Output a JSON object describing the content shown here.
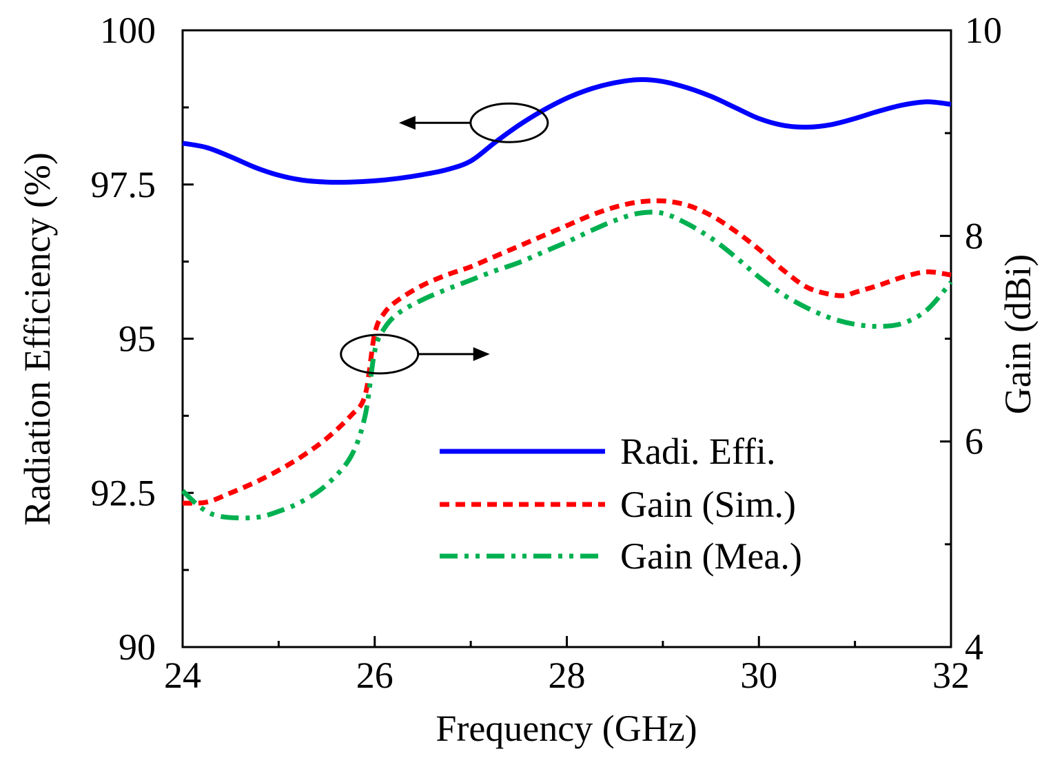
{
  "chart_data": {
    "type": "line",
    "xlabel": "Frequency (GHz)",
    "ylabel_left": "Radiation Efficiency (%)",
    "ylabel_right": "Gain (dBi)",
    "xlim": [
      24,
      32
    ],
    "ylim_left": [
      90,
      100
    ],
    "ylim_right": [
      4,
      10
    ],
    "x_ticks": [
      24,
      26,
      28,
      30,
      32
    ],
    "x_minor_ticks": [
      25,
      27,
      29,
      31
    ],
    "y_left_ticks": [
      {
        "value": 90,
        "label": "90"
      },
      {
        "value": 92.5,
        "label": "92.5"
      },
      {
        "value": 95,
        "label": "95"
      },
      {
        "value": 97.5,
        "label": "97.5"
      },
      {
        "value": 100,
        "label": "100"
      }
    ],
    "y_left_minor_ticks": [
      91.25,
      93.75,
      96.25,
      98.75
    ],
    "y_right_ticks": [
      {
        "value": 4,
        "label": "4"
      },
      {
        "value": 6,
        "label": "6"
      },
      {
        "value": 8,
        "label": "8"
      },
      {
        "value": 10,
        "label": "10"
      }
    ],
    "y_right_minor_ticks": [
      5,
      7,
      9
    ],
    "series": [
      {
        "name": "Radi. Effi.",
        "axis": "left",
        "color": "#0000ff",
        "dash": "solid",
        "x": [
          24.0,
          24.25,
          24.5,
          24.75,
          25.0,
          25.25,
          25.5,
          25.75,
          26.0,
          26.25,
          26.5,
          26.75,
          27.0,
          27.25,
          27.5,
          27.75,
          28.0,
          28.25,
          28.5,
          28.75,
          29.0,
          29.25,
          29.5,
          29.75,
          30.0,
          30.25,
          30.5,
          30.75,
          31.0,
          31.25,
          31.5,
          31.75,
          32.0
        ],
        "y": [
          98.17,
          98.1,
          97.95,
          97.78,
          97.65,
          97.57,
          97.54,
          97.54,
          97.56,
          97.6,
          97.66,
          97.74,
          97.88,
          98.18,
          98.46,
          98.7,
          98.9,
          99.05,
          99.15,
          99.2,
          99.17,
          99.07,
          98.93,
          98.75,
          98.57,
          98.46,
          98.43,
          98.47,
          98.57,
          98.69,
          98.79,
          98.84,
          98.8
        ]
      },
      {
        "name": "Gain (Sim.)",
        "axis": "right",
        "color": "#ff0000",
        "dash": "dashed",
        "x": [
          24.0,
          24.25,
          24.5,
          24.75,
          25.0,
          25.25,
          25.5,
          25.75,
          25.9,
          26.0,
          26.1,
          26.25,
          26.5,
          26.75,
          27.0,
          27.25,
          27.5,
          27.75,
          28.0,
          28.25,
          28.5,
          28.75,
          29.0,
          29.25,
          29.5,
          29.75,
          30.0,
          30.25,
          30.5,
          30.75,
          30.9,
          31.0,
          31.25,
          31.5,
          31.75,
          32.0
        ],
        "y": [
          5.4,
          5.41,
          5.5,
          5.6,
          5.72,
          5.86,
          6.03,
          6.25,
          6.45,
          7.05,
          7.25,
          7.38,
          7.52,
          7.62,
          7.7,
          7.8,
          7.9,
          8.0,
          8.1,
          8.2,
          8.28,
          8.33,
          8.34,
          8.3,
          8.2,
          8.05,
          7.87,
          7.67,
          7.5,
          7.43,
          7.42,
          7.45,
          7.52,
          7.6,
          7.65,
          7.62
        ]
      },
      {
        "name": "Gain (Mea.)",
        "axis": "right",
        "color": "#00b050",
        "dash": "dashdotdot",
        "x": [
          24.0,
          24.2,
          24.4,
          24.75,
          25.0,
          25.25,
          25.5,
          25.75,
          25.9,
          26.0,
          26.1,
          26.25,
          26.5,
          26.75,
          27.0,
          27.25,
          27.5,
          27.75,
          28.0,
          28.25,
          28.5,
          28.75,
          29.0,
          29.25,
          29.5,
          29.75,
          30.0,
          30.25,
          30.5,
          30.75,
          31.0,
          31.25,
          31.5,
          31.75,
          32.0
        ],
        "y": [
          5.52,
          5.35,
          5.27,
          5.26,
          5.32,
          5.42,
          5.58,
          5.85,
          6.25,
          6.88,
          7.1,
          7.25,
          7.38,
          7.48,
          7.57,
          7.66,
          7.74,
          7.84,
          7.94,
          8.05,
          8.15,
          8.22,
          8.22,
          8.12,
          7.98,
          7.8,
          7.6,
          7.43,
          7.3,
          7.2,
          7.14,
          7.12,
          7.15,
          7.28,
          7.55
        ]
      }
    ],
    "legend": {
      "placement": "center-right",
      "entries": [
        "Radi. Effi.",
        "Gain (Sim.)",
        "Gain (Mea.)"
      ]
    },
    "annotations": [
      {
        "type": "ellipse-arrow",
        "target": "Radi. Effi.",
        "direction": "left",
        "at_x": 27.4,
        "at_y_left": 98.5
      },
      {
        "type": "ellipse-arrow",
        "target": "Gain",
        "direction": "right",
        "at_x": 26.05,
        "at_y_right": 6.85
      }
    ]
  }
}
